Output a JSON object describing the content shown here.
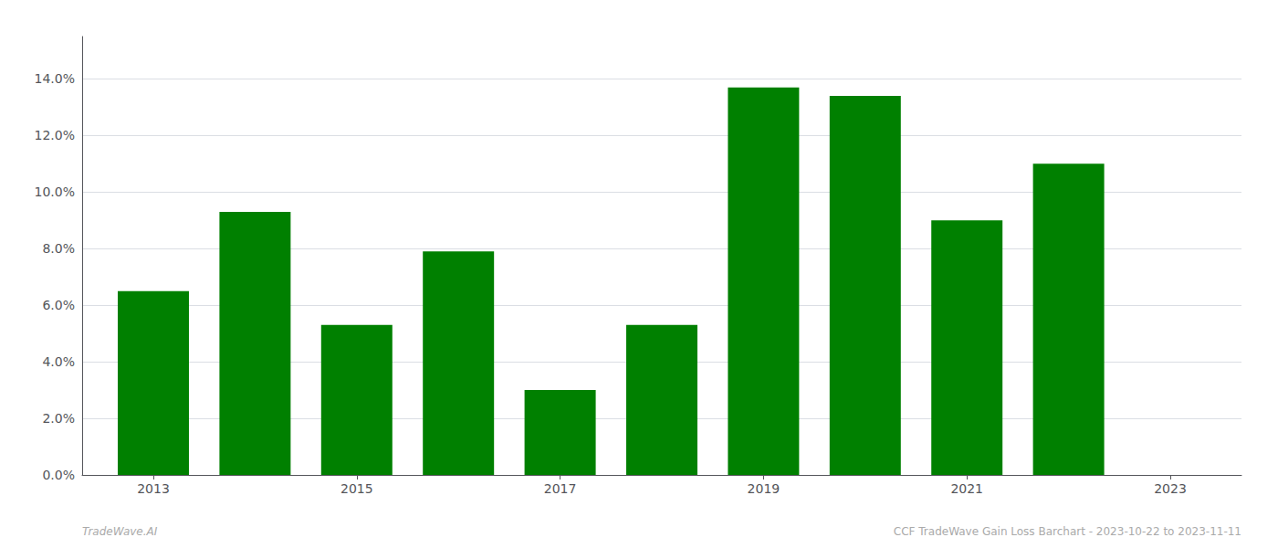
{
  "chart_data": {
    "type": "bar",
    "x": [
      2013,
      2014,
      2015,
      2016,
      2017,
      2018,
      2019,
      2020,
      2021,
      2022
    ],
    "values": [
      0.065,
      0.093,
      0.053,
      0.079,
      0.03,
      0.053,
      0.137,
      0.134,
      0.09,
      0.11
    ],
    "color": "#008000",
    "xlim": [
      2012.3,
      2023.7
    ],
    "xticks": [
      2013,
      2015,
      2017,
      2019,
      2021,
      2023
    ],
    "ylim": [
      0,
      0.155
    ],
    "yticks": [
      {
        "value": 0.0,
        "label": "0.0%"
      },
      {
        "value": 0.02,
        "label": "2.0%"
      },
      {
        "value": 0.04,
        "label": "4.0%"
      },
      {
        "value": 0.06,
        "label": "6.0%"
      },
      {
        "value": 0.08,
        "label": "8.0%"
      },
      {
        "value": 0.1,
        "label": "10.0%"
      },
      {
        "value": 0.12,
        "label": "12.0%"
      },
      {
        "value": 0.14,
        "label": "14.0%"
      }
    ],
    "grid": true,
    "annotations": [
      "TradeWave.AI",
      "CCF TradeWave Gain Loss Barchart - 2023-10-22 to 2023-11-11"
    ]
  }
}
